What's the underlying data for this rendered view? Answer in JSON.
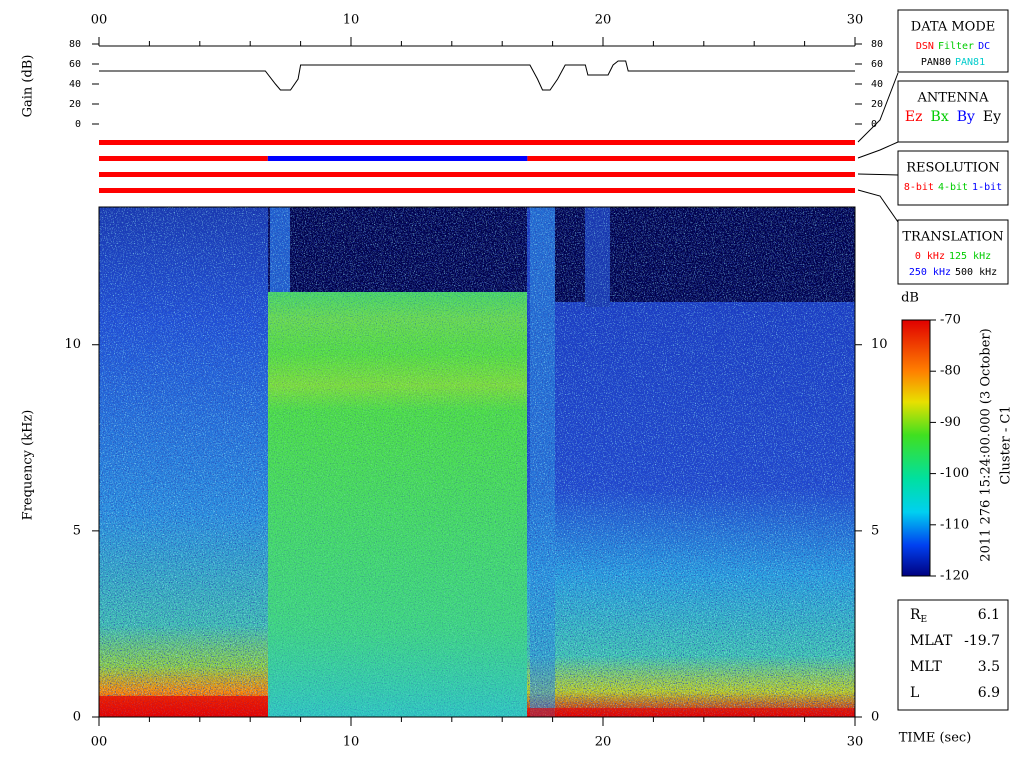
{
  "chart_data": [
    {
      "type": "line",
      "ylabel": "Gain (dB)",
      "x": [
        0,
        6.6,
        7.0,
        7.2,
        7.6,
        7.9,
        8.0,
        17.1,
        17.4,
        17.6,
        17.9,
        18.2,
        18.5,
        19.3,
        19.4,
        20.2,
        20.4,
        20.6,
        20.9,
        21.0,
        30
      ],
      "values": [
        53,
        53,
        40,
        34,
        34,
        45,
        59,
        59,
        45,
        34,
        34,
        45,
        59,
        59,
        49,
        49,
        59,
        63,
        63,
        53,
        53
      ],
      "color": "#000000",
      "xlim": [
        0,
        30
      ],
      "xticks": [
        {
          "value": 0,
          "label": "00"
        },
        10,
        20,
        30
      ],
      "xminorticks": [
        2,
        4,
        6,
        8,
        12,
        14,
        16,
        18,
        22,
        24,
        26,
        28
      ],
      "ylim": [
        0,
        80
      ],
      "yticks": [
        0,
        20,
        40,
        60,
        80
      ]
    },
    {
      "type": "timeline",
      "xlim": [
        0,
        30
      ],
      "rows": [
        {
          "segments": [
            {
              "start": 0,
              "end": 30,
              "color": "#ff0000"
            }
          ]
        },
        {
          "segments": [
            {
              "start": 0,
              "end": 6.7,
              "color": "#ff0000"
            },
            {
              "start": 6.7,
              "end": 17.0,
              "color": "#0000ff"
            },
            {
              "start": 17.0,
              "end": 30,
              "color": "#ff0000"
            }
          ]
        },
        {
          "segments": [
            {
              "start": 0,
              "end": 30,
              "color": "#ff0000"
            }
          ]
        },
        {
          "segments": [
            {
              "start": 0,
              "end": 30,
              "color": "#ff0000"
            }
          ]
        }
      ]
    },
    {
      "type": "spectrogram",
      "xlabel": "TIME (sec)",
      "ylabel": "Frequency (kHz)",
      "xlim": [
        0,
        30
      ],
      "xticks": [
        {
          "value": 0,
          "label": "00"
        },
        10,
        20,
        30
      ],
      "xminorticks": [
        2,
        4,
        6,
        8,
        12,
        14,
        16,
        18,
        22,
        24,
        26,
        28
      ],
      "ylim": [
        0,
        13.7
      ],
      "yticks": [
        0,
        5,
        10
      ],
      "colorbar": {
        "label": "dB",
        "lim": [
          -120,
          -70
        ],
        "ticks": [
          -70,
          -80,
          -90,
          -100,
          -110,
          -120
        ]
      },
      "annotations": [
        "2011 276 15:24:00.000 (3 October)",
        "Cluster - C1"
      ]
    }
  ],
  "legend_boxes": [
    {
      "title": "DATA MODE",
      "rows": [
        [
          {
            "label": "DSN",
            "color": "#ff0000"
          },
          {
            "label": "Filter",
            "color": "#00cc00"
          },
          {
            "label": "DC",
            "color": "#0000ff"
          }
        ],
        [
          {
            "label": "PAN80",
            "color": "#000000"
          },
          {
            "label": "PAN81",
            "color": "#00cccc"
          }
        ]
      ]
    },
    {
      "title": "ANTENNA",
      "rows": [
        [
          {
            "label": "Ez",
            "color": "#ff0000"
          },
          {
            "label": "Bx",
            "color": "#00cc00"
          },
          {
            "label": "By",
            "color": "#0000ff"
          },
          {
            "label": "Ey",
            "color": "#000000"
          }
        ]
      ]
    },
    {
      "title": "RESOLUTION",
      "rows": [
        [
          {
            "label": "8-bit",
            "color": "#ff0000"
          },
          {
            "label": "4-bit",
            "color": "#00cc00"
          },
          {
            "label": "1-bit",
            "color": "#0000ff"
          }
        ]
      ]
    },
    {
      "title": "TRANSLATION",
      "rows": [
        [
          {
            "label": "0 kHz",
            "color": "#ff0000"
          },
          {
            "label": "125 kHz",
            "color": "#00cc00"
          }
        ],
        [
          {
            "label": "250 kHz",
            "color": "#0000ff"
          },
          {
            "label": "500 kHz",
            "color": "#000000"
          }
        ]
      ]
    }
  ],
  "info": [
    {
      "label": "R",
      "subscript": "E",
      "value": 6.1
    },
    {
      "label": "MLAT",
      "value": -19.7
    },
    {
      "label": "MLT",
      "value": 3.5
    },
    {
      "label": "L",
      "value": 6.9
    }
  ]
}
